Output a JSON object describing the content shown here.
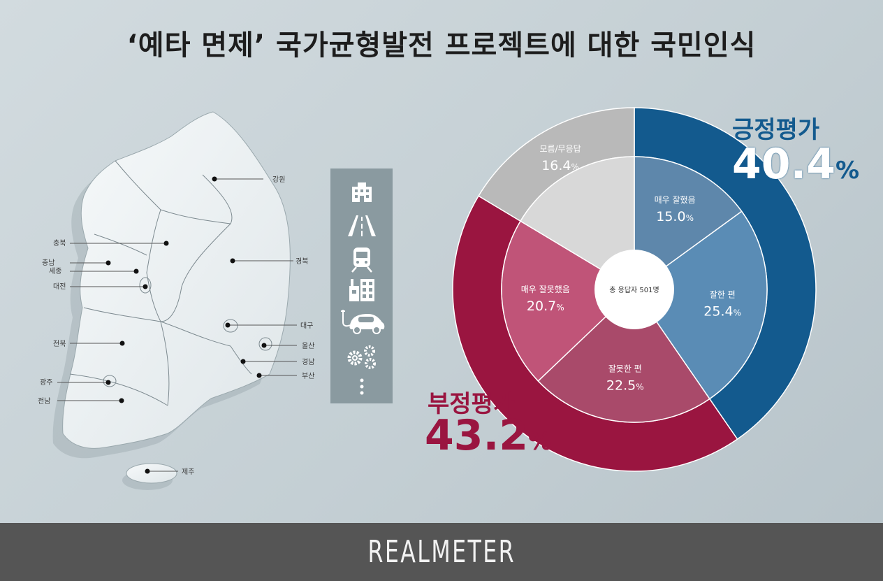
{
  "title": "‘예타 면제’ 국가균형발전 프로젝트에 대한 국민인식",
  "map": {
    "regions": [
      {
        "name": "강원"
      },
      {
        "name": "충북"
      },
      {
        "name": "충남"
      },
      {
        "name": "세종"
      },
      {
        "name": "대전"
      },
      {
        "name": "경북"
      },
      {
        "name": "대구"
      },
      {
        "name": "전북"
      },
      {
        "name": "울산"
      },
      {
        "name": "경남"
      },
      {
        "name": "부산"
      },
      {
        "name": "광주"
      },
      {
        "name": "전남"
      },
      {
        "name": "제주"
      }
    ]
  },
  "icons": [
    "building-icon",
    "road-icon",
    "train-icon",
    "factory-icon",
    "electric-car-icon",
    "gears-icon",
    "more-icon"
  ],
  "chart_data": {
    "type": "pie",
    "center_label": "총 응답자 501명",
    "inner_ring": [
      {
        "label": "매우 잘했음",
        "value": 15.0,
        "display": "15.0",
        "color": "#5e87ab"
      },
      {
        "label": "잘한 편",
        "value": 25.4,
        "display": "25.4",
        "color": "#5a8cb5"
      },
      {
        "label": "잘못한 편",
        "value": 22.5,
        "display": "22.5",
        "color": "#a94a6a"
      },
      {
        "label": "매우 잘못했음",
        "value": 20.7,
        "display": "20.7",
        "color": "#c05478"
      },
      {
        "label": "모름/무응답",
        "value": 16.4,
        "display": "16.4",
        "color": "#d8d8d8"
      }
    ],
    "outer_ring": [
      {
        "label": "긍정평가",
        "value": 40.4,
        "display": "40.4",
        "color": "#135a8e"
      },
      {
        "label": "부정평가",
        "value": 43.2,
        "display": "43.2",
        "color": "#9a1540"
      },
      {
        "label": "모름/무응답",
        "value": 16.4,
        "display": "16.4",
        "color": "#b9b9b9"
      }
    ],
    "percent_sign": "%"
  },
  "summary": {
    "positive_label": "긍정평가",
    "positive_value": "40.4",
    "negative_label": "부정평가",
    "negative_value": "43.2",
    "percent": "%"
  },
  "footer": {
    "brand": "REALMETER"
  }
}
